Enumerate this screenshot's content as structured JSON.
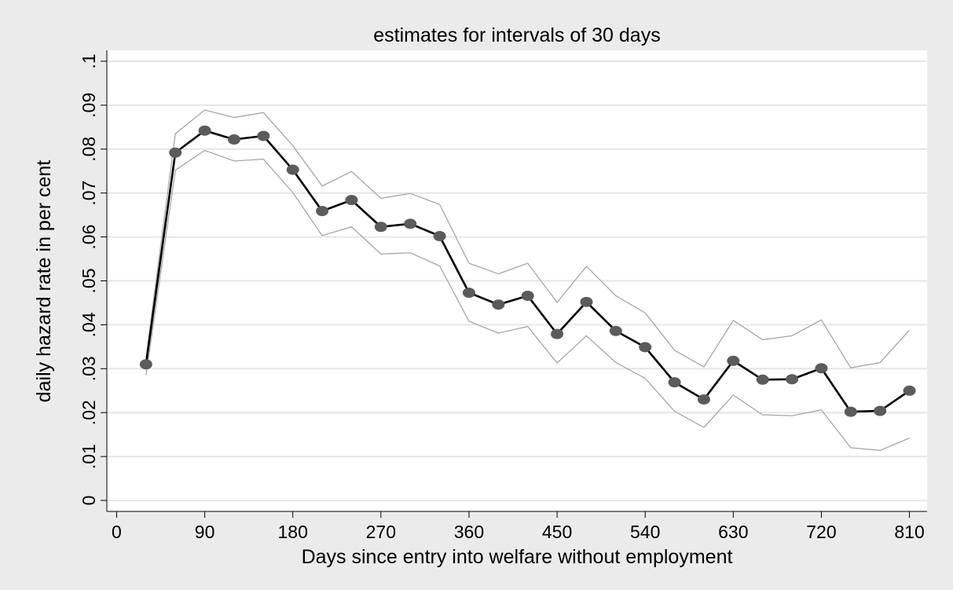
{
  "chart_data": {
    "type": "line",
    "title": "estimates for intervals of 30 days",
    "xlabel": "Days since entry into welfare without employment",
    "ylabel": "daily hazard rate in per cent",
    "xlim": [
      -10,
      828
    ],
    "ylim": [
      -0.0025,
      0.1025
    ],
    "xticks": [
      0,
      90,
      180,
      270,
      360,
      450,
      540,
      630,
      720,
      810
    ],
    "xtick_labels": [
      "0",
      "90",
      "180",
      "270",
      "360",
      "450",
      "540",
      "630",
      "720",
      "810"
    ],
    "yticks": [
      0,
      0.01,
      0.02,
      0.03,
      0.04,
      0.05,
      0.06,
      0.07,
      0.08,
      0.09,
      0.1
    ],
    "ytick_labels": [
      "0",
      ".01",
      ".02",
      ".03",
      ".04",
      ".05",
      ".06",
      ".07",
      ".08",
      ".09",
      ".1"
    ],
    "grid": true,
    "x": [
      30,
      60,
      90,
      120,
      150,
      180,
      210,
      240,
      270,
      300,
      330,
      360,
      390,
      420,
      450,
      480,
      510,
      540,
      570,
      600,
      630,
      660,
      690,
      720,
      750,
      780,
      810
    ],
    "series": [
      {
        "role": "estimate",
        "values": [
          0.031,
          0.0792,
          0.0842,
          0.0822,
          0.083,
          0.0753,
          0.0659,
          0.0684,
          0.0623,
          0.063,
          0.0602,
          0.0473,
          0.0446,
          0.0466,
          0.0379,
          0.0452,
          0.0386,
          0.0349,
          0.0269,
          0.023,
          0.0318,
          0.0275,
          0.0276,
          0.0301,
          0.0202,
          0.0204,
          0.025
        ],
        "color": "#000000",
        "marker_color": "#5b5b5b"
      },
      {
        "role": "upper-bound",
        "values": [
          0.0325,
          0.0835,
          0.0889,
          0.0872,
          0.0883,
          0.0808,
          0.0716,
          0.0749,
          0.0688,
          0.0699,
          0.0674,
          0.054,
          0.0516,
          0.054,
          0.0451,
          0.0533,
          0.0466,
          0.0427,
          0.0342,
          0.0304,
          0.041,
          0.0366,
          0.0375,
          0.0411,
          0.0302,
          0.0314,
          0.0388
        ],
        "color": "#a6a6a6"
      },
      {
        "role": "lower-bound",
        "values": [
          0.0285,
          0.0752,
          0.0797,
          0.0773,
          0.0777,
          0.0701,
          0.0603,
          0.0623,
          0.0561,
          0.0564,
          0.0534,
          0.0408,
          0.0381,
          0.0396,
          0.0313,
          0.0375,
          0.0314,
          0.0278,
          0.0203,
          0.0166,
          0.024,
          0.0195,
          0.0193,
          0.0206,
          0.012,
          0.0114,
          0.0142
        ],
        "color": "#a6a6a6"
      }
    ]
  }
}
